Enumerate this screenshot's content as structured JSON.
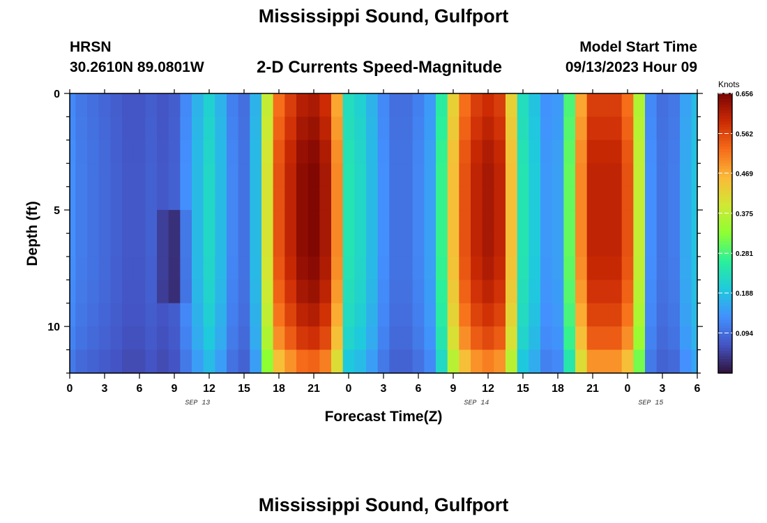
{
  "title": "Mississippi Sound, Gulfport",
  "station": "HRSN",
  "coordinates": "30.2610N  89.0801W",
  "subtitle": "2-D Currents Speed-Magnitude",
  "model_start_label": "Model Start Time",
  "model_start_value": "09/13/2023 Hour 09",
  "footer_title": "Mississippi Sound, Gulfport",
  "colors": {
    "scale": [
      "#30123b",
      "#4454c4",
      "#4390fe",
      "#1fc9dd",
      "#2af09b",
      "#8dff33",
      "#d1e834",
      "#fbb938",
      "#f66b19",
      "#cb2a04",
      "#7a0403"
    ]
  },
  "chart_data": {
    "type": "heatmap",
    "title": "2-D Currents Speed-Magnitude",
    "xlabel": "Forecast Time(Z)",
    "ylabel": "Depth (ft)",
    "x_tick_labels": [
      "0",
      "3",
      "6",
      "9",
      "12",
      "15",
      "18",
      "21",
      "0",
      "3",
      "6",
      "9",
      "12",
      "15",
      "18",
      "21",
      "0",
      "3",
      "6"
    ],
    "date_labels": [
      {
        "label": "SEP 13",
        "at_hour": 11
      },
      {
        "label": "SEP 14",
        "at_hour": 35
      },
      {
        "label": "SEP 15",
        "at_hour": 50
      }
    ],
    "x_range_hours": [
      0,
      54
    ],
    "y_ticks": [
      0,
      5,
      10
    ],
    "y_range": [
      0,
      12
    ],
    "colorbar": {
      "label": "Knots",
      "min": 0.0,
      "max": 0.656,
      "tick_labels": [
        "0.094",
        "0.188",
        "0.281",
        "0.375",
        "0.469",
        "0.562",
        "0.656"
      ]
    },
    "depth_profile": [
      0.95,
      0.97,
      0.99,
      1.0,
      1.0,
      1.0,
      1.0,
      0.99,
      0.97,
      0.94,
      0.9,
      0.82
    ],
    "surface_speed_by_hour": [
      0.13,
      0.11,
      0.1,
      0.09,
      0.08,
      0.07,
      0.07,
      0.08,
      0.07,
      0.08,
      0.13,
      0.18,
      0.22,
      0.18,
      0.12,
      0.1,
      0.18,
      0.4,
      0.55,
      0.6,
      0.64,
      0.65,
      0.62,
      0.5,
      0.24,
      0.22,
      0.18,
      0.13,
      0.1,
      0.1,
      0.12,
      0.15,
      0.27,
      0.45,
      0.55,
      0.6,
      0.62,
      0.6,
      0.45,
      0.24,
      0.2,
      0.14,
      0.15,
      0.3,
      0.5,
      0.6,
      0.6,
      0.6,
      0.55,
      0.38,
      0.13,
      0.1,
      0.11,
      0.16,
      0.19
    ],
    "dark_spot": {
      "hour": 9,
      "depth_range_ft": [
        5.5,
        8.5
      ]
    }
  }
}
